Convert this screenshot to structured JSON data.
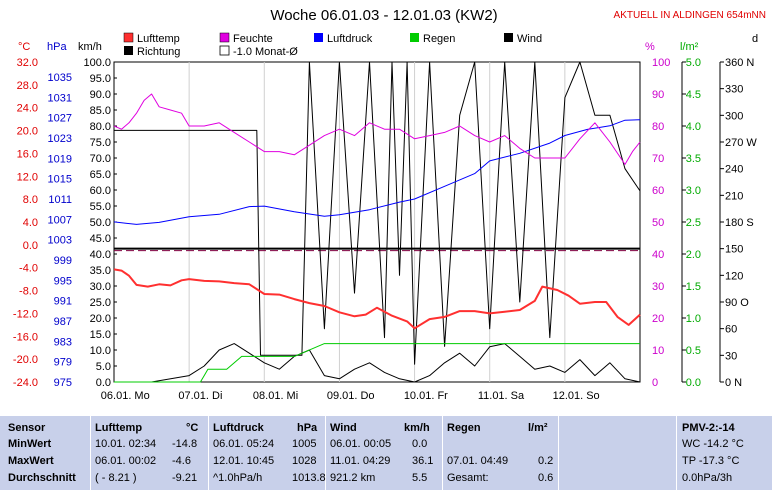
{
  "header": {
    "title": "Woche 06.01.03 - 12.01.03 (KW2)",
    "station": "AKTUELL IN ALDINGEN 654mNN"
  },
  "legend": [
    {
      "label": "Lufttemp",
      "color": "#ff3030"
    },
    {
      "label": "Richtung",
      "color": "#000000"
    },
    {
      "label": "Feuchte",
      "color": "#e000e0"
    },
    {
      "label": "-1.0 Monat-Ø",
      "color": "#ffffff"
    },
    {
      "label": "Luftdruck",
      "color": "#0000ff"
    },
    {
      "label": "Regen",
      "color": "#00cc00"
    },
    {
      "label": "Wind",
      "color": "#000000"
    }
  ],
  "chart_data": {
    "type": "line",
    "units": {
      "temp": "°C",
      "pressure": "hPa",
      "wind": "km/h",
      "humidity": "%",
      "rain": "l/m²",
      "direction": "d"
    },
    "axes": {
      "temp_ticks": [
        "32.0",
        "28.0",
        "24.0",
        "20.0",
        "16.0",
        "12.0",
        "8.0",
        "4.0",
        "0.0",
        "-4.0",
        "-8.0",
        "-12.0",
        "-16.0",
        "-20.0",
        "-24.0"
      ],
      "pressure_ticks": [
        "1035",
        "1031",
        "1027",
        "1023",
        "1019",
        "1015",
        "1011",
        "1007",
        "1003",
        "999",
        "995",
        "991",
        "987",
        "983",
        "979",
        "975"
      ],
      "wind_ticks": [
        "100.0",
        "95.0",
        "90.0",
        "85.0",
        "80.0",
        "75.0",
        "70.0",
        "65.0",
        "60.0",
        "55.0",
        "50.0",
        "45.0",
        "40.0",
        "35.0",
        "30.0",
        "25.0",
        "20.0",
        "15.0",
        "10.0",
        "5.0",
        "0.0"
      ],
      "humidity_ticks": [
        "100",
        "90",
        "80",
        "70",
        "60",
        "50",
        "40",
        "30",
        "20",
        "10",
        "0"
      ],
      "rain_ticks": [
        "5.0",
        "4.5",
        "4.0",
        "3.5",
        "3.0",
        "2.5",
        "2.0",
        "1.5",
        "1.0",
        "0.5",
        "0.0"
      ],
      "direction_ticks": [
        "360 N",
        "330",
        "300",
        "270 W",
        "240",
        "210",
        "180 S",
        "150",
        "120",
        "90 O",
        "60",
        "30",
        "0 N"
      ],
      "x_ticks": [
        "06.01. Mo",
        "07.01. Di",
        "08.01. Mi",
        "09.01. Do",
        "10.01. Fr",
        "11.01. Sa",
        "12.01. So"
      ],
      "ylim_wind": [
        0,
        100
      ]
    },
    "series": [
      {
        "name": "Lufttemp",
        "x": [
          0,
          0.1,
          0.2,
          0.3,
          0.45,
          0.6,
          0.75,
          0.9,
          1.0,
          1.2,
          1.4,
          1.6,
          1.8,
          2.0,
          2.2,
          2.4,
          2.6,
          2.8,
          3.0,
          3.2,
          3.35,
          3.5,
          3.7,
          3.9,
          4.0,
          4.2,
          4.4,
          4.6,
          4.8,
          5.0,
          5.2,
          5.4,
          5.6,
          5.7,
          5.9,
          6.05,
          6.2,
          6.4,
          6.55,
          6.7,
          6.85,
          7.0
        ],
        "values": [
          -4.3,
          -4.5,
          -5.4,
          -7.0,
          -7.3,
          -6.9,
          -7.1,
          -6.2,
          -6.0,
          -6.3,
          -6.4,
          -6.7,
          -6.9,
          -8.6,
          -8.7,
          -9.5,
          -10.2,
          -10.7,
          -11.8,
          -12.5,
          -12.2,
          -11.0,
          -12.4,
          -13.4,
          -14.6,
          -13.0,
          -12.6,
          -11.6,
          -11.6,
          -12.0,
          -11.7,
          -11.4,
          -9.8,
          -7.3,
          -7.9,
          -8.9,
          -10.3,
          -10.0,
          -10.0,
          -12.6,
          -14.0,
          -12.2
        ]
      },
      {
        "name": "Feuchte",
        "x": [
          0,
          0.1,
          0.2,
          0.3,
          0.4,
          0.5,
          0.6,
          0.75,
          0.9,
          1.0,
          1.2,
          1.4,
          1.6,
          1.8,
          2.0,
          2.2,
          2.4,
          2.6,
          2.8,
          3.0,
          3.2,
          3.4,
          3.6,
          3.8,
          4.0,
          4.2,
          4.4,
          4.6,
          4.8,
          5.0,
          5.2,
          5.4,
          5.6,
          5.8,
          6.0,
          6.2,
          6.4,
          6.6,
          6.8,
          6.9,
          7.0
        ],
        "values": [
          80,
          79,
          81,
          84,
          88,
          90,
          86,
          85,
          84,
          80,
          80,
          81,
          78,
          75,
          72,
          72,
          71,
          74,
          77,
          79,
          77,
          81,
          79,
          79,
          76,
          77,
          78,
          80,
          77,
          75,
          77,
          73,
          70,
          70,
          70,
          76,
          81,
          75,
          68,
          72,
          75
        ]
      },
      {
        "name": "Luftdruck",
        "x": [
          0,
          0.3,
          0.6,
          1.0,
          1.4,
          1.8,
          2.0,
          2.4,
          2.8,
          3.0,
          3.4,
          3.8,
          4.0,
          4.4,
          4.8,
          5.0,
          5.4,
          5.8,
          6.0,
          6.3,
          6.6,
          6.8,
          7.0
        ],
        "values": [
          1006.5,
          1006.0,
          1006.4,
          1007.5,
          1008.0,
          1009.5,
          1009.6,
          1008.5,
          1007.6,
          1007.9,
          1008.9,
          1010.4,
          1011.0,
          1013.5,
          1016.0,
          1018.5,
          1020.0,
          1022.0,
          1023.5,
          1024.7,
          1025.4,
          1026.5,
          1026.6
        ]
      },
      {
        "name": "Regen",
        "x": [
          0,
          1.15,
          1.2,
          1.25,
          1.5,
          1.7,
          2.0,
          2.4,
          2.8,
          3.0,
          4.0,
          5.0,
          6.0,
          7.0
        ],
        "values": [
          0.0,
          0.0,
          0.1,
          0.2,
          0.2,
          0.4,
          0.4,
          0.4,
          0.6,
          0.6,
          0.6,
          0.6,
          0.6,
          0.6
        ]
      },
      {
        "name": "Richtung",
        "x": [
          0,
          0.5,
          1.0,
          1.5,
          1.9,
          1.95,
          2.0,
          2.2,
          2.5,
          2.6,
          2.8,
          3.0,
          3.2,
          3.4,
          3.6,
          3.7,
          3.8,
          3.9,
          4.0,
          4.2,
          4.4,
          4.6,
          4.8,
          5.0,
          5.2,
          5.4,
          5.6,
          5.8,
          6.0,
          6.2,
          6.4,
          6.6,
          6.8,
          7.0
        ],
        "values": [
          283,
          283,
          283,
          283,
          283,
          30,
          30,
          30,
          30,
          360,
          60,
          360,
          100,
          360,
          50,
          360,
          120,
          360,
          20,
          360,
          40,
          300,
          360,
          60,
          360,
          90,
          360,
          50,
          320,
          360,
          300,
          300,
          240,
          215
        ]
      },
      {
        "name": "Wind",
        "x": [
          0,
          0.5,
          1.0,
          1.2,
          1.4,
          1.6,
          1.8,
          2.0,
          2.2,
          2.4,
          2.6,
          2.8,
          3.0,
          3.2,
          3.4,
          3.6,
          3.8,
          4.0,
          4.2,
          4.4,
          4.6,
          4.8,
          5.0,
          5.2,
          5.4,
          5.6,
          5.8,
          6.0,
          6.2,
          6.4,
          6.6,
          6.8,
          7.0
        ],
        "values": [
          0,
          0,
          2,
          5,
          10,
          12,
          9,
          6,
          4,
          8,
          10,
          2,
          1,
          4,
          6,
          3,
          1,
          0,
          2,
          6,
          9,
          5,
          11,
          12,
          8,
          4,
          5,
          3,
          7,
          2,
          6,
          1,
          0
        ]
      },
      {
        "name": "-1.0 Monat-Ø",
        "x": [
          0,
          7
        ],
        "values": [
          -1.0,
          -1.0
        ]
      }
    ]
  },
  "table": {
    "headers": {
      "sensor": "Sensor",
      "lufttemp": "Lufttemp",
      "lufttemp_unit": "°C",
      "luftdruck": "Luftdruck",
      "luftdruck_unit": "hPa",
      "wind": "Wind",
      "wind_unit": "km/h",
      "regen": "Regen",
      "regen_unit": "l/m²",
      "pmv": "PMV-2:-14"
    },
    "rows": [
      {
        "label": "MinWert",
        "temp_time": "10.01.  02:34",
        "temp_val": "-14.8",
        "press_time": "06.01.  05:24",
        "press_val": "1005",
        "wind_time": "06.01.  00:05",
        "wind_val": "0.0",
        "rain_time": "",
        "rain_val": "",
        "pmv": "WC -14.2 °C"
      },
      {
        "label": "MaxWert",
        "temp_time": "06.01.  00:02",
        "temp_val": "-4.6",
        "press_time": "12.01.  10:45",
        "press_val": "1028",
        "wind_time": "11.01.  04:29",
        "wind_val": "36.1",
        "rain_time": "07.01.  04:49",
        "rain_val": "0.2",
        "pmv": "TP -17.3 °C"
      },
      {
        "label": "Durchschnitt",
        "temp_time": "( - 8.21 )",
        "temp_val": "-9.21",
        "press_time": "^1.0hPa/h",
        "press_val": "1013.8",
        "wind_time": "921.2 km",
        "wind_val": "5.5",
        "rain_time": "Gesamt:",
        "rain_val": "0.6",
        "pmv": "0.0hPa/3h"
      }
    ]
  }
}
